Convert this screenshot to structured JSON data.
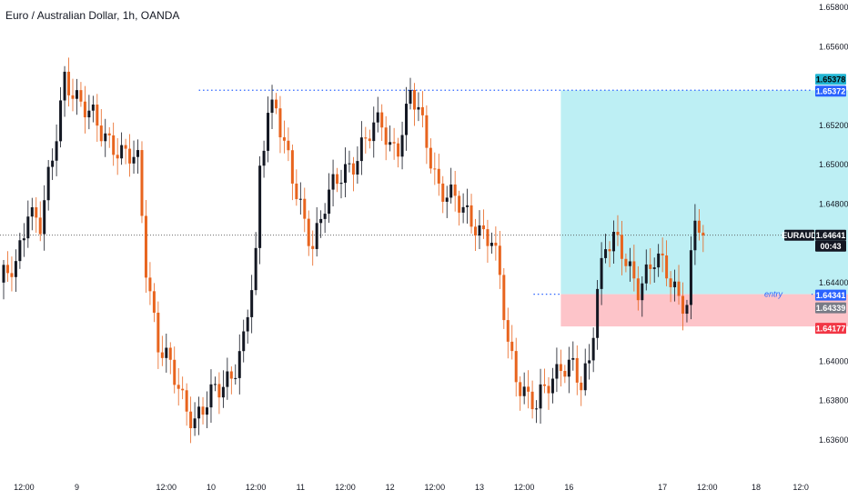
{
  "header": {
    "title": "Euro / Australian Dollar, 1h, OANDA"
  },
  "colors": {
    "up": "#131722",
    "down": "#E8641E",
    "target_zone": "#BDEFF4",
    "stop_zone": "#FDC4C9",
    "dotted_line": "#2962FF",
    "current_line": "#555555",
    "target_tag": "#22B5D3",
    "blue_tag": "#2962FF",
    "gray_tag": "#787B86",
    "red_tag": "#F23645",
    "black_tag": "#131722"
  },
  "chart_data": {
    "type": "candlestick",
    "title": "Euro / Australian Dollar, 1h, OANDA",
    "symbol": "EURAUD",
    "y_range": [
      1.6347,
      1.658
    ],
    "y_ticks": [
      "1.65800",
      "1.65600",
      "1.65200",
      "1.65000",
      "1.64800",
      "1.64400",
      "1.64000",
      "1.63800",
      "1.63600"
    ],
    "x_ticks": [
      "12:00",
      "9",
      "12:00",
      "10",
      "12:00",
      "11",
      "12:00",
      "12",
      "12:00",
      "13",
      "12:00",
      "16",
      "17",
      "12:00",
      "18",
      "12:0"
    ],
    "anchors": [
      [
        0,
        1.644
      ],
      [
        4,
        1.6446
      ],
      [
        7,
        1.648
      ],
      [
        10,
        1.647
      ],
      [
        13,
        1.65
      ],
      [
        16,
        1.6545
      ],
      [
        18,
        1.654
      ],
      [
        20,
        1.653
      ],
      [
        24,
        1.6519
      ],
      [
        28,
        1.6512
      ],
      [
        30,
        1.6505
      ],
      [
        34,
        1.65
      ],
      [
        36,
        1.645
      ],
      [
        39,
        1.641
      ],
      [
        42,
        1.6395
      ],
      [
        45,
        1.638
      ],
      [
        48,
        1.6372
      ],
      [
        51,
        1.6378
      ],
      [
        54,
        1.6385
      ],
      [
        57,
        1.6395
      ],
      [
        60,
        1.641
      ],
      [
        63,
        1.645
      ],
      [
        64,
        1.6495
      ],
      [
        66,
        1.653
      ],
      [
        68,
        1.6532
      ],
      [
        70,
        1.651
      ],
      [
        72,
        1.649
      ],
      [
        75,
        1.647
      ],
      [
        77,
        1.6462
      ],
      [
        80,
        1.648
      ],
      [
        83,
        1.649
      ],
      [
        86,
        1.65
      ],
      [
        89,
        1.651
      ],
      [
        91,
        1.6515
      ],
      [
        94,
        1.652
      ],
      [
        96,
        1.651
      ],
      [
        98,
        1.6512
      ],
      [
        100,
        1.6525
      ],
      [
        101,
        1.6535
      ],
      [
        103,
        1.6525
      ],
      [
        106,
        1.6505
      ],
      [
        108,
        1.649
      ],
      [
        111,
        1.6482
      ],
      [
        114,
        1.6476
      ],
      [
        117,
        1.6472
      ],
      [
        119,
        1.6465
      ],
      [
        121,
        1.646
      ],
      [
        123,
        1.644
      ],
      [
        125,
        1.641
      ],
      [
        127,
        1.6395
      ],
      [
        130,
        1.638
      ],
      [
        132,
        1.6375
      ],
      [
        135,
        1.639
      ],
      [
        138,
        1.64
      ],
      [
        141,
        1.6395
      ],
      [
        143,
        1.6385
      ],
      [
        145,
        1.64
      ],
      [
        147,
        1.644
      ],
      [
        149,
        1.646
      ],
      [
        151,
        1.646
      ],
      [
        154,
        1.645
      ],
      [
        157,
        1.644
      ],
      [
        159,
        1.6445
      ],
      [
        161,
        1.645
      ],
      [
        164,
        1.6445
      ],
      [
        167,
        1.6435
      ],
      [
        169,
        1.643
      ],
      [
        171,
        1.647
      ],
      [
        173,
        1.6464
      ]
    ],
    "current": {
      "label": "EURAUD",
      "price": "1.64641",
      "countdown": "00:43"
    },
    "position": {
      "type": "long",
      "entry_label": "entry",
      "target_price": "1.65378",
      "target_line_price": "1.65372",
      "entry_price": "1.64341",
      "entry_price_2": "1.64339",
      "stop_price": "1.64177",
      "target": 1.65378,
      "entry": 1.64341,
      "stop": 1.64177,
      "zone_x_range": [
        137,
        212
      ]
    }
  }
}
